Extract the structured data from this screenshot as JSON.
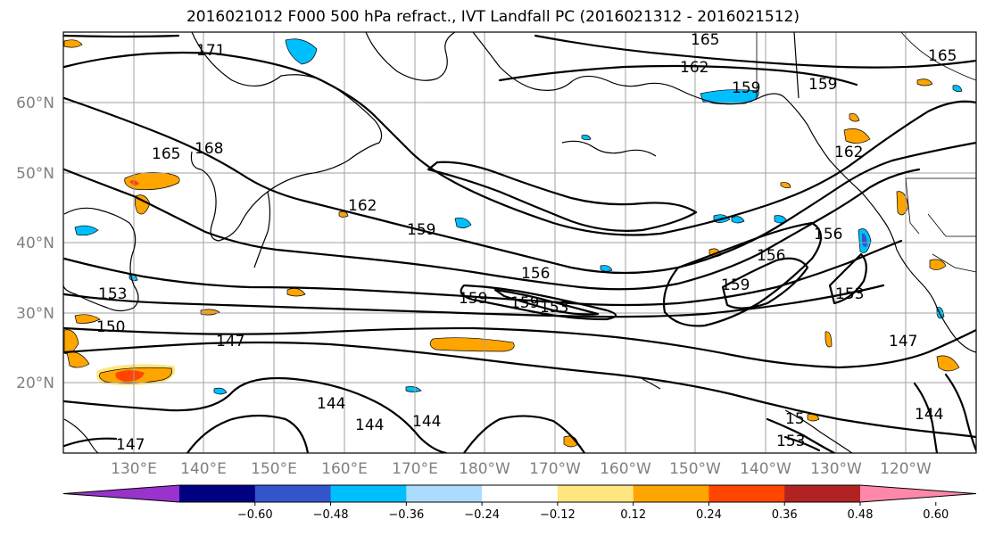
{
  "title": "2016021012 F000 500 hPa refract., IVT Landfall PC (2016021312 - 2016021512)",
  "lat_labels": [
    "60°N",
    "50°N",
    "40°N",
    "30°N",
    "20°N"
  ],
  "lon_labels": [
    "130°E",
    "140°E",
    "150°E",
    "160°E",
    "170°E",
    "180°W",
    "170°W",
    "160°W",
    "150°W",
    "140°W",
    "130°W",
    "120°W"
  ],
  "map_extent": {
    "lon_min": 120,
    "lon_max": 250,
    "lat_min": 10,
    "lat_max": 70
  },
  "contour_labels": [
    "171",
    "165",
    "168",
    "162",
    "165",
    "165",
    "162",
    "159",
    "159",
    "162",
    "159",
    "156",
    "159",
    "156",
    "159",
    "153",
    "159",
    "156",
    "153",
    "150",
    "153",
    "147",
    "147",
    "144",
    "144",
    "144",
    "144",
    "147",
    "153",
    "15"
  ],
  "colorbar": {
    "ticks": [
      "−0.60",
      "−0.48",
      "−0.36",
      "−0.24",
      "−0.12",
      "0.12",
      "0.24",
      "0.36",
      "0.48",
      "0.60"
    ],
    "colors": [
      "#9933cc",
      "#000080",
      "#3355cc",
      "#00bfff",
      "#aadcff",
      "#ffffff",
      "#ffe680",
      "#ffa500",
      "#ff4500",
      "#b22222",
      "#ff88aa"
    ]
  }
}
